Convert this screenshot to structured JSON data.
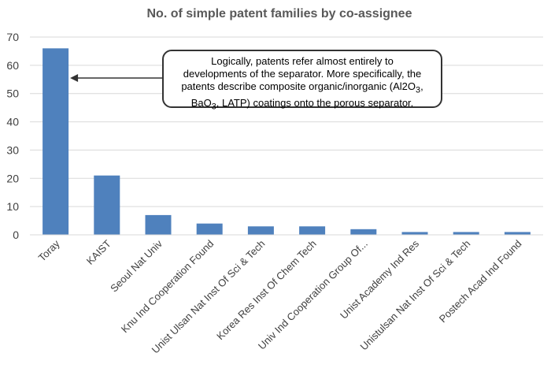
{
  "chart_data": {
    "type": "bar",
    "title": "No. of simple patent families by co-assignee",
    "xlabel": "",
    "ylabel": "",
    "categories": [
      "Toray",
      "KAIST",
      "Seoul Nat Univ",
      "Knu Ind Cooperation Found",
      "Unist Ulsan Nat Inst Of Sci & Tech",
      "Korea Res Inst Of Chem Tech",
      "Univ Ind Cooperation Group Of...",
      "Unist Academy Ind Res",
      "Unistulsan Nat Inst Of Sci & Tech",
      "Postech Acad Ind Found"
    ],
    "values": [
      66,
      21,
      7,
      4,
      3,
      3,
      2,
      1,
      1,
      1
    ],
    "ylim": [
      0,
      70
    ],
    "yticks": [
      0,
      10,
      20,
      30,
      40,
      50,
      60,
      70
    ],
    "grid": true,
    "bar_color": "#4f81bd",
    "annotation": {
      "line1": "Logically, patents refer almost entirely to",
      "line2": "developments of the separator. More specifically, the",
      "line3": "patents describe composite organic/inorganic (Al2O",
      "line3_sub": "3",
      "line3_end": ",",
      "line4_pre": "BaO",
      "line4_sub1": "3",
      "line4_mid": ", LATP) coatings onto the porous separator.",
      "target": "Toray"
    }
  }
}
